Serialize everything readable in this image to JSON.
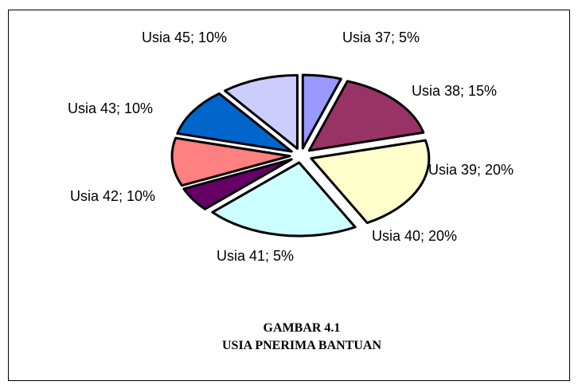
{
  "chart_data": {
    "type": "pie",
    "caption": [
      "GAMBAR 4.1",
      "USIA PNERIMA BANTUAN"
    ],
    "labels": [
      "Usia 37; 5%",
      "Usia 38; 15%",
      "Usia 39; 20%",
      "Usia 40; 20%",
      "Usia 41; 5%",
      "Usia 42; 10%",
      "Usia 43; 10%",
      "Usia 45; 10%"
    ],
    "values": [
      5,
      15,
      20,
      20,
      5,
      10,
      10,
      10
    ],
    "colors": [
      "#9999ff",
      "#993366",
      "#ffffcc",
      "#ccffff",
      "#660066",
      "#ff8080",
      "#0066cc",
      "#ccccff"
    ],
    "exploded": true
  }
}
